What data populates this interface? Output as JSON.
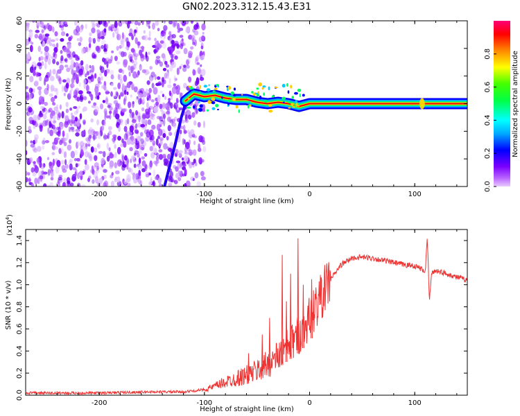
{
  "title": "GN02.2023.312.15.43.E31",
  "colors": {
    "snr_line": "#ee3333",
    "axis": "#000000",
    "background": "#ffffff"
  },
  "chart_data": [
    {
      "type": "heatmap",
      "name": "spectrogram",
      "xlabel": "Height of straight line (km)",
      "ylabel": "Frequency (Hz)",
      "xlim": [
        -270,
        150
      ],
      "ylim": [
        -60,
        60
      ],
      "x_ticks": [
        -200,
        -100,
        0,
        100
      ],
      "x_tick_labels": [
        "-200",
        "-100",
        "0",
        "100"
      ],
      "y_ticks": [
        -60,
        -40,
        -20,
        0,
        20,
        40,
        60
      ],
      "y_tick_labels": [
        "-60",
        "-40",
        "-20",
        "0",
        "20",
        "40",
        "60"
      ],
      "noise_region_x": [
        -270,
        -100
      ],
      "signal_track": [
        {
          "x": -118,
          "y": 2
        },
        {
          "x": -110,
          "y": 7
        },
        {
          "x": -100,
          "y": 5
        },
        {
          "x": -90,
          "y": 6
        },
        {
          "x": -80,
          "y": 4
        },
        {
          "x": -70,
          "y": 3
        },
        {
          "x": -60,
          "y": 3
        },
        {
          "x": -50,
          "y": 1
        },
        {
          "x": -40,
          "y": 0
        },
        {
          "x": -30,
          "y": 1
        },
        {
          "x": -20,
          "y": 0
        },
        {
          "x": -10,
          "y": -2
        },
        {
          "x": 0,
          "y": 0
        },
        {
          "x": 50,
          "y": 0
        },
        {
          "x": 100,
          "y": 0
        },
        {
          "x": 150,
          "y": 0
        }
      ],
      "dispersion_streak": [
        {
          "x": -138,
          "y": -60
        },
        {
          "x": -128,
          "y": -30
        },
        {
          "x": -122,
          "y": -10
        },
        {
          "x": -116,
          "y": 5
        }
      ],
      "colorbar": {
        "label": "Normalized spectral amplitude",
        "range": [
          0,
          1
        ],
        "ticks": [
          0.0,
          0.2,
          0.4,
          0.6,
          0.8
        ],
        "tick_labels": [
          "0.0",
          "0.2",
          "0.4",
          "0.6",
          "0.8"
        ]
      }
    },
    {
      "type": "line",
      "name": "snr",
      "xlabel": "Height of straight line (km)",
      "ylabel": "SNR (10 * v/v)",
      "y_multiplier_label": "(x10",
      "y_multiplier_exp": "4",
      "xlim": [
        -270,
        150
      ],
      "ylim": [
        0,
        1.5
      ],
      "x_ticks": [
        -200,
        -100,
        0,
        100
      ],
      "x_tick_labels": [
        "-200",
        "-100",
        "0",
        "100"
      ],
      "y_ticks": [
        0.0,
        0.2,
        0.4,
        0.6,
        0.8,
        1.0,
        1.2,
        1.4
      ],
      "y_tick_labels": [
        "0.0",
        "0.2",
        "0.4",
        "0.6",
        "0.8",
        "1.0",
        "1.2",
        "1.4"
      ],
      "series": [
        {
          "x": [
            -270,
            -200,
            -150,
            -120,
            -100,
            -90,
            -80,
            -70,
            -60,
            -50,
            -40,
            -30,
            -20,
            -10,
            0,
            10,
            20,
            30,
            40,
            50,
            60,
            70,
            80,
            90,
            100,
            105,
            110,
            112,
            114,
            116,
            120,
            130,
            140,
            150
          ],
          "y": [
            0.02,
            0.02,
            0.03,
            0.03,
            0.05,
            0.08,
            0.12,
            0.15,
            0.18,
            0.22,
            0.28,
            0.35,
            0.45,
            0.55,
            0.7,
            0.88,
            1.05,
            1.18,
            1.24,
            1.25,
            1.24,
            1.22,
            1.2,
            1.18,
            1.17,
            1.15,
            1.12,
            1.42,
            0.85,
            1.1,
            1.13,
            1.1,
            1.07,
            1.04
          ]
        }
      ],
      "spikes": [
        {
          "x": -58,
          "y": 0.38
        },
        {
          "x": -45,
          "y": 0.55
        },
        {
          "x": -38,
          "y": 0.7
        },
        {
          "x": -26,
          "y": 1.27
        },
        {
          "x": -22,
          "y": 0.85
        },
        {
          "x": -18,
          "y": 1.1
        },
        {
          "x": -11,
          "y": 1.42
        },
        {
          "x": -6,
          "y": 1.0
        },
        {
          "x": 2,
          "y": 1.05
        }
      ]
    }
  ]
}
